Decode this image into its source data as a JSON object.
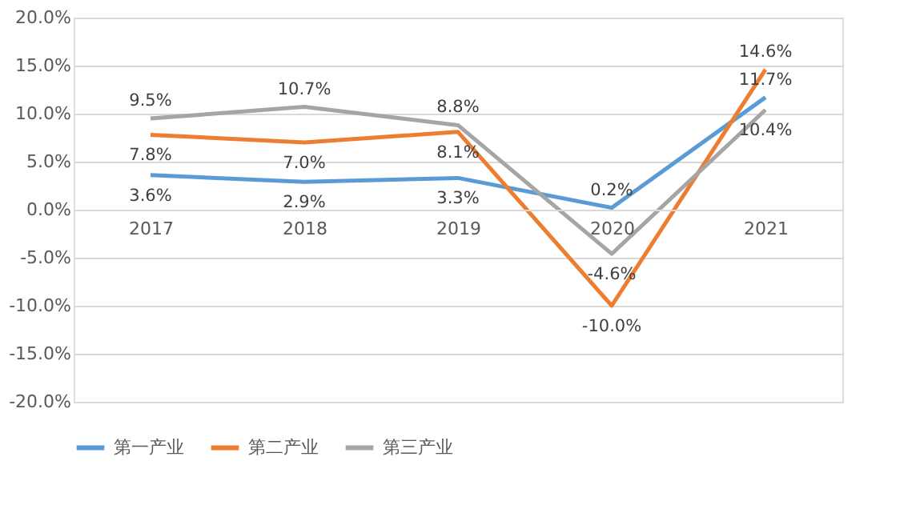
{
  "chart_data": {
    "type": "line",
    "categories": [
      "2017",
      "2018",
      "2019",
      "2020",
      "2021"
    ],
    "series": [
      {
        "name": "第一产业",
        "color": "#5b9bd5",
        "values": [
          3.6,
          2.9,
          3.3,
          0.2,
          11.7
        ],
        "value_labels": [
          "3.6%",
          "2.9%",
          "3.3%",
          "0.2%",
          "11.7%"
        ]
      },
      {
        "name": "第二产业",
        "color": "#ed7d31",
        "values": [
          7.8,
          7.0,
          8.1,
          -10.0,
          14.6
        ],
        "value_labels": [
          "7.8%",
          "7.0%",
          "8.1%",
          "-10.0%",
          "14.6%"
        ]
      },
      {
        "name": "第三产业",
        "color": "#a5a5a5",
        "values": [
          9.5,
          10.7,
          8.8,
          -4.6,
          10.4
        ],
        "value_labels": [
          "9.5%",
          "10.7%",
          "8.8%",
          "-4.6%",
          "10.4%"
        ]
      }
    ],
    "ylim": [
      -20,
      20
    ],
    "yticks": [
      {
        "value": -20,
        "label": "-20.0%"
      },
      {
        "value": -15,
        "label": "-15.0%"
      },
      {
        "value": -10,
        "label": "-10.0%"
      },
      {
        "value": -5,
        "label": "-5.0%"
      },
      {
        "value": 0,
        "label": "0.0%"
      },
      {
        "value": 5,
        "label": "5.0%"
      },
      {
        "value": 10,
        "label": "10.0%"
      },
      {
        "value": 15,
        "label": "15.0%"
      },
      {
        "value": 20,
        "label": "20.0%"
      }
    ],
    "grid": "y",
    "legend": "bottom",
    "marker": "none",
    "line_style": "solid"
  }
}
